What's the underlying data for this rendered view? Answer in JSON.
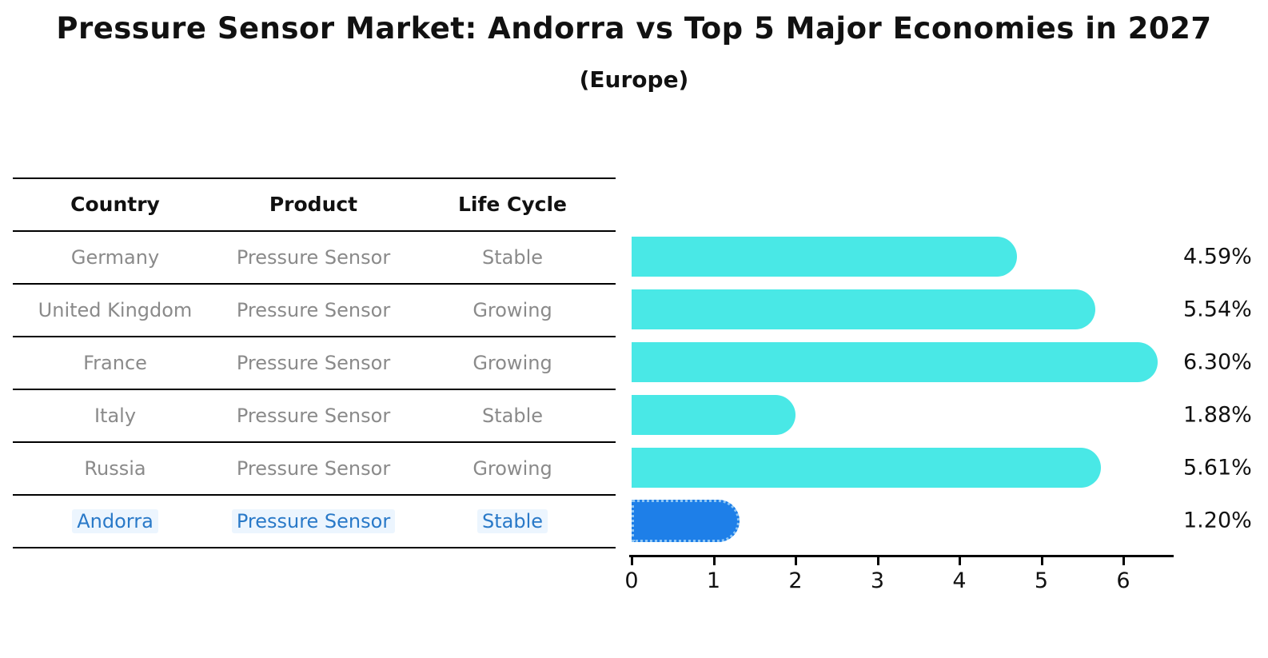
{
  "title": "Pressure Sensor Market: Andorra vs Top 5 Major Economies in 2027",
  "subtitle": "(Europe)",
  "table": {
    "headers": [
      "Country",
      "Product",
      "Life Cycle"
    ],
    "rows": [
      {
        "country": "Germany",
        "product": "Pressure Sensor",
        "life_cycle": "Stable",
        "highlighted": false
      },
      {
        "country": "United Kingdom",
        "product": "Pressure Sensor",
        "life_cycle": "Growing",
        "highlighted": false
      },
      {
        "country": "France",
        "product": "Pressure Sensor",
        "life_cycle": "Growing",
        "highlighted": false
      },
      {
        "country": "Italy",
        "product": "Pressure Sensor",
        "life_cycle": "Stable",
        "highlighted": false
      },
      {
        "country": "Russia",
        "product": "Pressure Sensor",
        "life_cycle": "Growing",
        "highlighted": false
      },
      {
        "country": "Andorra",
        "product": "Pressure Sensor",
        "life_cycle": "Stable",
        "highlighted": true
      }
    ]
  },
  "chart_data": {
    "type": "bar",
    "orientation": "horizontal",
    "title": "Pressure Sensor Market: Andorra vs Top 5 Major Economies in 2027",
    "subtitle": "(Europe)",
    "categories": [
      "Germany",
      "United Kingdom",
      "France",
      "Italy",
      "Russia",
      "Andorra"
    ],
    "values": [
      4.59,
      5.54,
      6.3,
      1.88,
      5.61,
      1.2
    ],
    "labels": [
      "4.59%",
      "5.54%",
      "6.30%",
      "1.88%",
      "5.61%",
      "1.20%"
    ],
    "x_ticks": [
      0,
      1,
      2,
      3,
      4,
      5,
      6
    ],
    "xlim": [
      0,
      6.63
    ],
    "xlabel": "",
    "ylabel": "",
    "grid": false,
    "legend": false,
    "bar_color": "#49e8e6",
    "highlight_bar_color": "#1e7fe8",
    "highlight_bar_border_color": "#8ec6f5",
    "highlight_index": 5,
    "value_label_color": "#111111"
  },
  "colors": {
    "background": "#ffffff",
    "table_header_text": "#111111",
    "table_body_text": "#8a8a8a",
    "highlight_text": "#2979c8",
    "axis": "#000000"
  }
}
